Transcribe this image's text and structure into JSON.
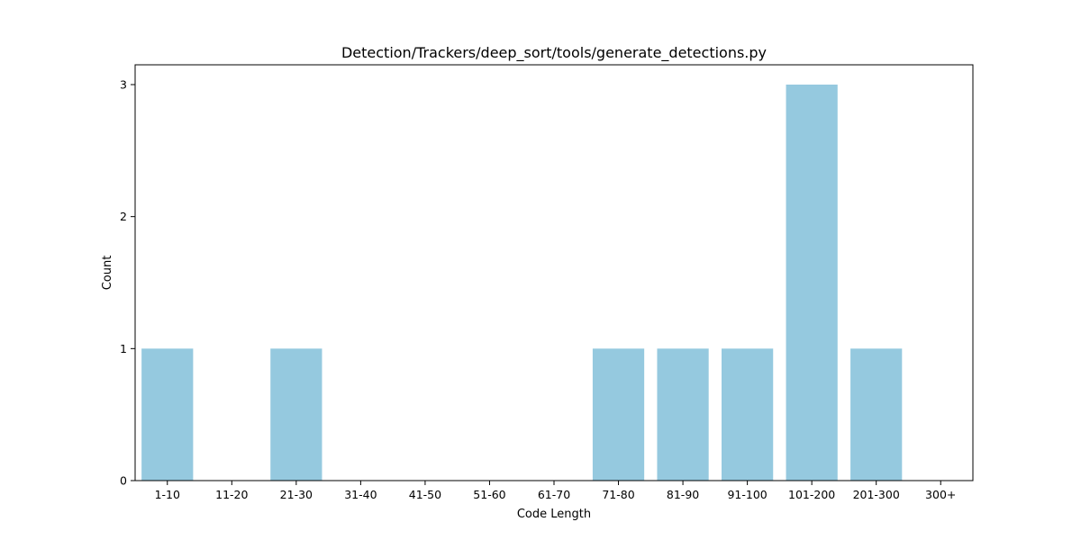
{
  "chart_data": {
    "type": "bar",
    "title": "Detection/Trackers/deep_sort/tools/generate_detections.py",
    "xlabel": "Code Length",
    "ylabel": "Count",
    "categories": [
      "1-10",
      "11-20",
      "21-30",
      "31-40",
      "41-50",
      "51-60",
      "61-70",
      "71-80",
      "81-90",
      "91-100",
      "101-200",
      "201-300",
      "300+"
    ],
    "values": [
      1,
      0,
      1,
      0,
      0,
      0,
      0,
      1,
      1,
      1,
      3,
      1,
      0
    ],
    "ylim": [
      0,
      3.15
    ],
    "yticks": [
      0,
      1,
      2,
      3
    ],
    "grid": false,
    "bar_color": "#95c9df",
    "legend": "none"
  }
}
